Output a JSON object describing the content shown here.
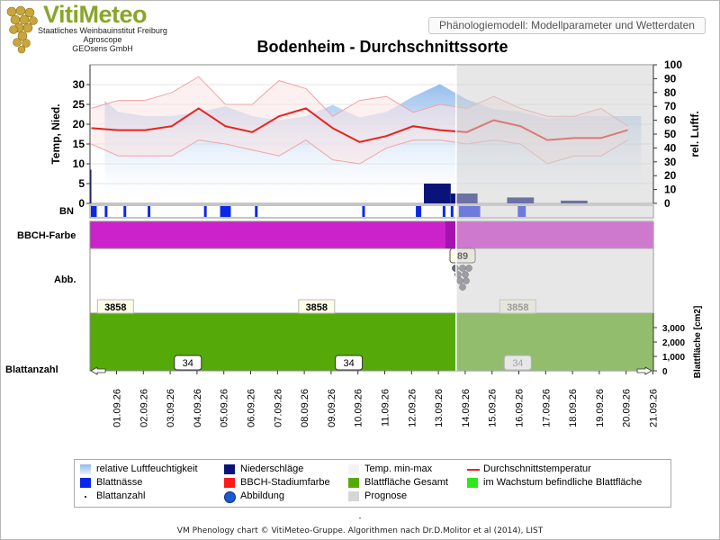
{
  "header": {
    "logo": "VitiMeteo",
    "org_lines": [
      "Staatliches Weinbauinstitut Freiburg",
      "Agroscope",
      "GEOsens GmbH"
    ],
    "model_label": "Phänologiemodell: Modellparameter und Wetterdaten"
  },
  "footer": "VM Phenology chart © VitiMeteo-Gruppe. Algorithmen nach Dr.D.Molitor et al (2014), LIST",
  "footer_dash": "-",
  "chart_data": {
    "type": "line",
    "title": "Bodenheim - Durchschnittssorte",
    "ylabel_left": "Temp, Nied.",
    "ylabel_right": "rel. Luftf.",
    "ylabel_leaf": "Blattfläche [cm2]",
    "ylim_left": [
      0,
      35
    ],
    "left_ticks": [
      0,
      5,
      10,
      15,
      20,
      25,
      30
    ],
    "ylim_right": [
      0,
      100
    ],
    "right_ticks": [
      0,
      10,
      20,
      30,
      40,
      50,
      60,
      70,
      80,
      90,
      100
    ],
    "leaf_ticks": [
      "0",
      "1,000",
      "2,000",
      "3,000"
    ],
    "ylim_leaf": [
      0,
      4000
    ],
    "dates": [
      "01.09.26",
      "02.09.26",
      "03.09.26",
      "04.09.26",
      "05.09.26",
      "06.09.26",
      "07.09.26",
      "08.09.26",
      "09.09.26",
      "10.09.26",
      "11.09.26",
      "12.09.26",
      "13.09.26",
      "14.09.26",
      "15.09.26",
      "16.09.26",
      "17.09.26",
      "18.09.26",
      "19.09.26",
      "20.09.26",
      "21.09.26"
    ],
    "prognosis_from": "15.09.26",
    "series": [
      {
        "name": "relative Luftfeuchtigkeit",
        "color": "#9cc3ee",
        "x": [
          0.5,
          1,
          2,
          3,
          4,
          5,
          6,
          7,
          8,
          9,
          10,
          11,
          12,
          13,
          14,
          15,
          16,
          17,
          18,
          19,
          20
        ],
        "values": [
          74,
          66,
          63,
          63,
          66,
          70,
          63,
          60,
          63,
          71,
          62,
          66,
          77,
          86,
          75,
          68,
          66,
          61,
          63,
          63,
          63
        ]
      },
      {
        "name": "Durchschnittstemperatur",
        "color": "#e8231e",
        "x": [
          0,
          1,
          2,
          3,
          4,
          5,
          6,
          7,
          8,
          9,
          10,
          11,
          12,
          13,
          14,
          15,
          16,
          17,
          18,
          19,
          20
        ],
        "values": [
          19,
          18.5,
          18.5,
          19.5,
          24,
          19.5,
          18,
          22,
          24,
          19,
          15.5,
          17,
          19.5,
          18.5,
          18,
          21,
          19.5,
          16,
          16.5,
          16.5,
          18.5
        ]
      },
      {
        "name": "Temp. max",
        "color": "#f2a3a3",
        "x": [
          0,
          1,
          2,
          3,
          4,
          5,
          6,
          7,
          8,
          9,
          10,
          11,
          12,
          13,
          14,
          15,
          16,
          17,
          18,
          19,
          20
        ],
        "values": [
          24,
          26,
          26,
          28,
          32,
          25,
          25,
          31,
          29,
          22,
          26,
          27,
          23,
          25,
          24,
          27,
          24,
          22,
          22,
          24,
          19.5
        ]
      },
      {
        "name": "Temp. min",
        "color": "#f2a3a3",
        "x": [
          0,
          1,
          2,
          3,
          4,
          5,
          6,
          7,
          8,
          9,
          10,
          11,
          12,
          13,
          14,
          15,
          16,
          17,
          18,
          19,
          20
        ],
        "values": [
          15,
          12,
          12,
          12,
          16,
          15,
          13.5,
          12,
          16,
          11,
          10,
          14,
          16,
          16,
          15,
          16,
          15,
          10,
          12,
          12,
          16
        ]
      },
      {
        "name": "Niederschläge",
        "color": "#0a1478",
        "bars": [
          {
            "from": -0.5,
            "to": 0,
            "value": 8.5
          },
          {
            "from": 12.4,
            "to": 13.4,
            "value": 5.0
          },
          {
            "from": 13.4,
            "to": 14.4,
            "value": 2.5
          },
          {
            "from": 15.5,
            "to": 16.5,
            "value": 1.5
          },
          {
            "from": 17.5,
            "to": 18.5,
            "value": 0.7
          }
        ]
      },
      {
        "name": "Blattnässe",
        "color": "#0a28e6",
        "spans": [
          [
            -0.5,
            -0.1
          ],
          [
            0.05,
            0.2
          ],
          [
            0.5,
            0.6
          ],
          [
            1.2,
            1.3
          ],
          [
            2.1,
            2.2
          ],
          [
            4.2,
            4.3
          ],
          [
            4.8,
            5.2
          ],
          [
            6.1,
            6.2
          ],
          [
            10.1,
            10.2
          ],
          [
            12.1,
            12.3
          ],
          [
            13.1,
            13.2
          ],
          [
            13.4,
            13.5
          ],
          [
            13.7,
            14.5
          ],
          [
            15.9,
            16.2
          ]
        ]
      }
    ],
    "bbch": {
      "stage_label": "89",
      "stage_from": 13.4
    },
    "leaf_area": {
      "value": "3858",
      "label_positions": [
        0.9,
        8.4,
        15.9
      ]
    },
    "leaf_count": {
      "value": "34",
      "label_positions": [
        3.6,
        9.6,
        15.9
      ]
    },
    "legend_items": [
      {
        "label": "relative Luftfeuchtigkeit",
        "swatch": "gradient",
        "color": "#9cc3ee"
      },
      {
        "label": "Niederschläge",
        "swatch": "square",
        "color": "#0a1478"
      },
      {
        "label": "Temp. min-max",
        "swatch": "square",
        "color": "#f3f3f3"
      },
      {
        "label": "Durchschnittstemperatur",
        "swatch": "line",
        "color": "#e8231e"
      },
      {
        "label": "Blattnässe",
        "swatch": "square",
        "color": "#0a28e6"
      },
      {
        "label": "BBCH-Stadiumfarbe",
        "swatch": "square",
        "color": "#ff1a1a"
      },
      {
        "label": "Blattfläche Gesamt",
        "swatch": "square",
        "color": "#55aa0a"
      },
      {
        "label": "im Wachstum befindliche Blattfläche",
        "swatch": "square",
        "color": "#2ee81a"
      },
      {
        "label": "Blattanzahl",
        "swatch": "dot",
        "color": "#333333"
      },
      {
        "label": "Abbildung",
        "swatch": "circle",
        "color": "#1a5ad2"
      },
      {
        "label": "Prognose",
        "swatch": "square",
        "color": "#d6d6d6"
      }
    ]
  },
  "rows": {
    "bn": "BN",
    "bbch": "BBCH-Farbe",
    "abb": "Abb.",
    "blattanzahl": "Blattanzahl"
  }
}
